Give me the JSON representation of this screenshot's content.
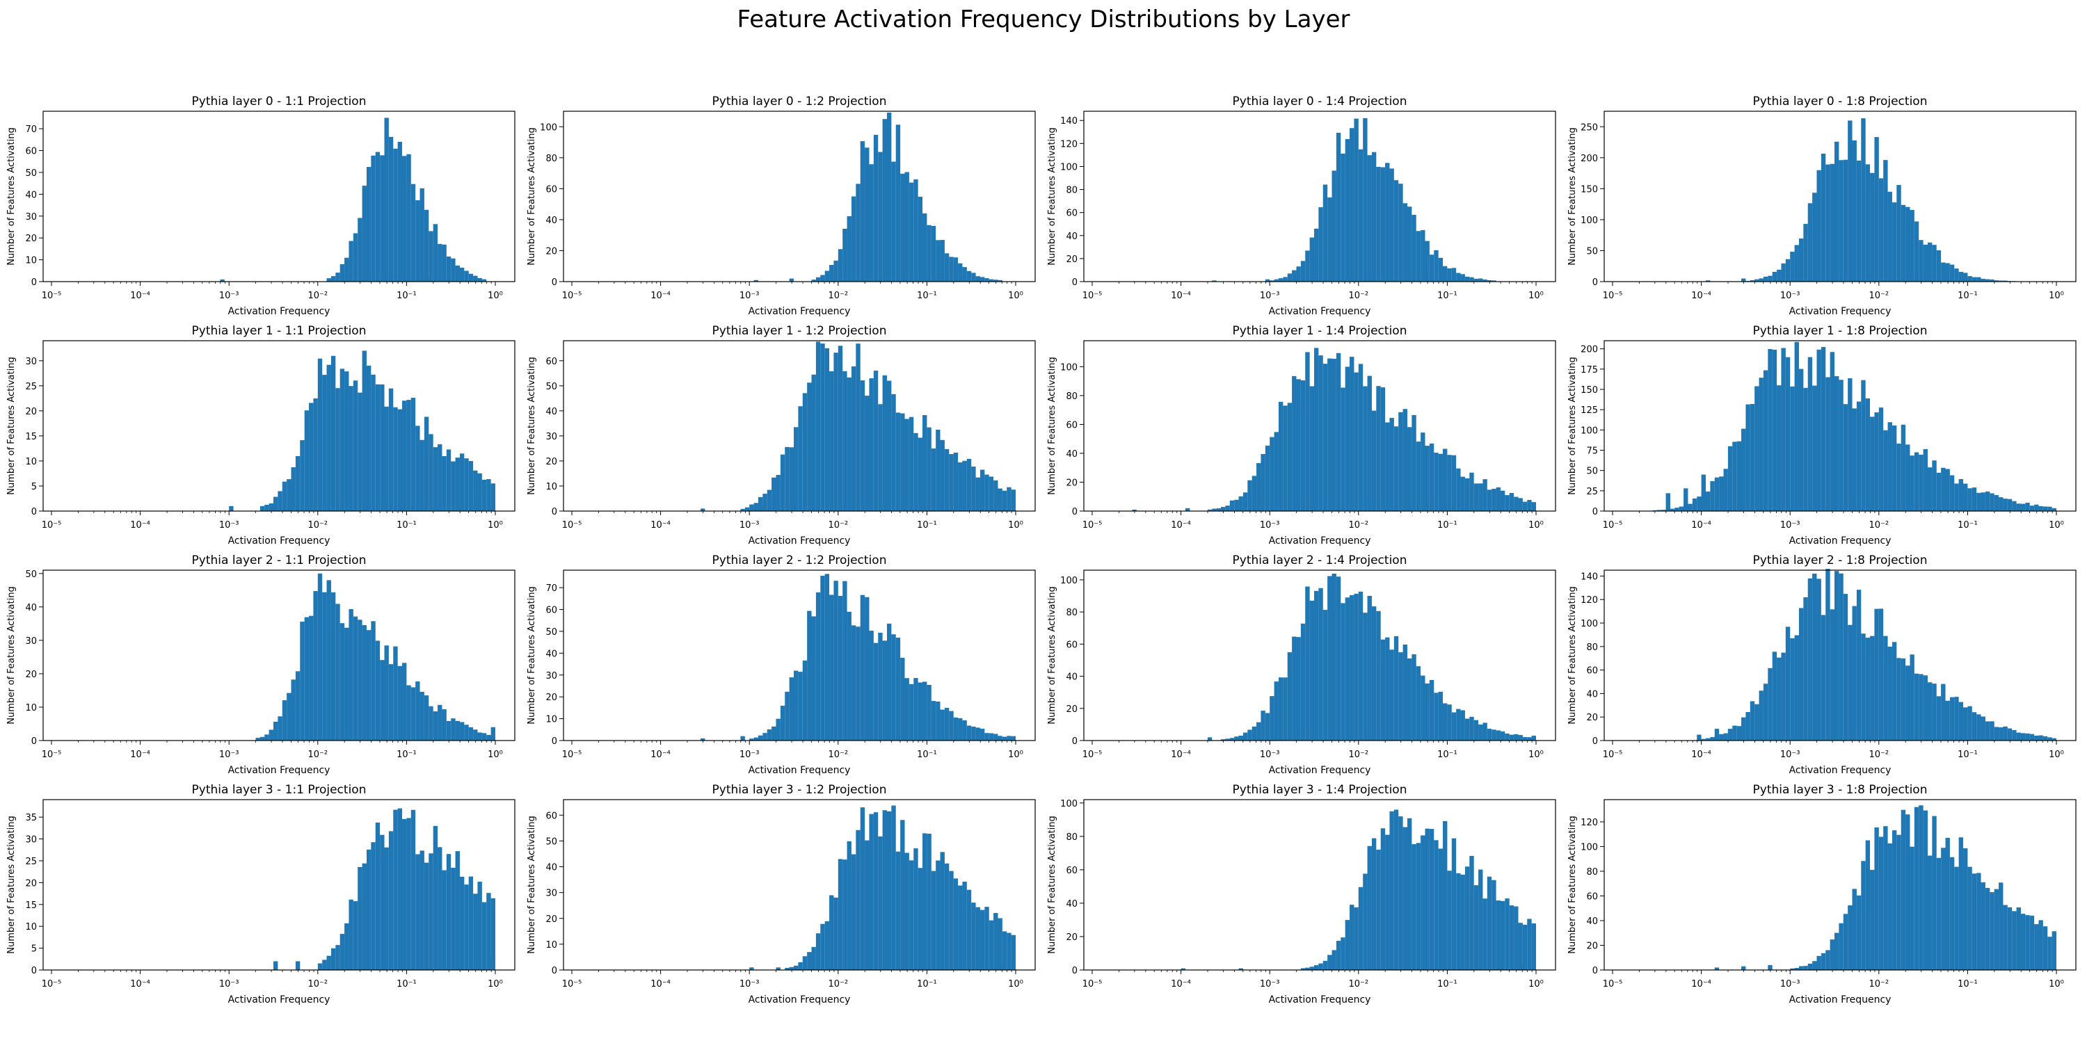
{
  "figure_title": "Feature Activation Frequency Distributions by Layer",
  "colors": {
    "bar": "#1f77b4",
    "axis": "#000000",
    "background": "#ffffff"
  },
  "shared_axes": {
    "xlabel": "Activation Frequency",
    "ylabel": "Number of Features Activating",
    "xscale": "log",
    "xlim": [
      1e-05,
      1
    ],
    "xtick_labels": [
      "10⁻⁵",
      "10⁻⁴",
      "10⁻³",
      "10⁻²",
      "10⁻¹",
      "10⁰"
    ]
  },
  "chart_data": [
    {
      "type": "bar",
      "subplot_row": 0,
      "subplot_col": 0,
      "title": "Pythia layer 0 - 1:1 Projection",
      "ylim": [
        0,
        78
      ],
      "yticks": [
        0,
        10,
        20,
        30,
        40,
        50,
        60,
        70
      ],
      "peak_x": 0.055,
      "peak_y": 75,
      "log_spread": 0.22,
      "tail_right": 0.4,
      "minor_bars": [
        [
          0.00085,
          1
        ],
        [
          0.16,
          2
        ]
      ],
      "bar_edges_log10": [
        -5,
        0
      ]
    },
    {
      "type": "bar",
      "subplot_row": 0,
      "subplot_col": 1,
      "title": "Pythia layer 0 - 1:2 Projection",
      "ylim": [
        0,
        110
      ],
      "yticks": [
        0,
        20,
        40,
        60,
        80,
        100
      ],
      "peak_x": 0.028,
      "peak_y": 105,
      "log_spread": 0.25,
      "tail_right": 0.45,
      "minor_bars": [
        [
          0.0012,
          1
        ],
        [
          0.003,
          2
        ]
      ],
      "bar_edges_log10": [
        -5,
        0
      ]
    },
    {
      "type": "bar",
      "subplot_row": 0,
      "subplot_col": 2,
      "title": "Pythia layer 0 - 1:4 Projection",
      "ylim": [
        0,
        148
      ],
      "yticks": [
        0,
        20,
        40,
        60,
        80,
        100,
        120,
        140
      ],
      "peak_x": 0.009,
      "peak_y": 142,
      "log_spread": 0.3,
      "tail_right": 0.5,
      "minor_bars": [
        [
          0.00025,
          1
        ],
        [
          0.0009,
          2
        ]
      ],
      "bar_edges_log10": [
        -5,
        0
      ]
    },
    {
      "type": "bar",
      "subplot_row": 0,
      "subplot_col": 3,
      "title": "Pythia layer 0 - 1:8 Projection",
      "ylim": [
        0,
        275
      ],
      "yticks": [
        0,
        50,
        100,
        150,
        200,
        250
      ],
      "peak_x": 0.0045,
      "peak_y": 260,
      "log_spread": 0.35,
      "tail_right": 0.55,
      "minor_bars": [
        [
          0.00012,
          2
        ],
        [
          0.0003,
          5
        ]
      ],
      "bar_edges_log10": [
        -5,
        0
      ]
    },
    {
      "type": "bar",
      "subplot_row": 1,
      "subplot_col": 0,
      "title": "Pythia layer 1 - 1:1 Projection",
      "ylim": [
        0,
        34
      ],
      "yticks": [
        0,
        5,
        10,
        15,
        20,
        25,
        30
      ],
      "peak_x": 0.014,
      "peak_y": 32,
      "log_spread": 0.28,
      "tail_right": 1.0,
      "minor_bars": [
        [
          0.0011,
          1
        ],
        [
          0.0025,
          1
        ],
        [
          0.9,
          1
        ]
      ],
      "bar_edges_log10": [
        -5,
        0
      ]
    },
    {
      "type": "bar",
      "subplot_row": 1,
      "subplot_col": 1,
      "title": "Pythia layer 1 - 1:2 Projection",
      "ylim": [
        0,
        68
      ],
      "yticks": [
        0,
        10,
        20,
        30,
        40,
        50,
        60
      ],
      "peak_x": 0.007,
      "peak_y": 65,
      "log_spread": 0.32,
      "tail_right": 1.05,
      "minor_bars": [
        [
          0.0003,
          1
        ],
        [
          0.0013,
          2
        ]
      ],
      "bar_edges_log10": [
        -5,
        0
      ]
    },
    {
      "type": "bar",
      "subplot_row": 1,
      "subplot_col": 2,
      "title": "Pythia layer 1 - 1:4 Projection",
      "ylim": [
        0,
        118
      ],
      "yticks": [
        0,
        20,
        40,
        60,
        80,
        100
      ],
      "peak_x": 0.003,
      "peak_y": 113,
      "log_spread": 0.38,
      "tail_right": 1.05,
      "minor_bars": [
        [
          3e-05,
          1
        ],
        [
          0.00012,
          2
        ]
      ],
      "bar_edges_log10": [
        -5,
        0
      ]
    },
    {
      "type": "bar",
      "subplot_row": 1,
      "subplot_col": 3,
      "title": "Pythia layer 1 - 1:8 Projection",
      "ylim": [
        0,
        210
      ],
      "yticks": [
        0,
        25,
        50,
        75,
        100,
        125,
        150,
        175,
        200
      ],
      "peak_x": 0.0009,
      "peak_y": 201,
      "log_spread": 0.45,
      "tail_right": 1.1,
      "minor_bars": [
        [
          4e-05,
          22
        ],
        [
          7e-05,
          28
        ],
        [
          0.0001,
          45
        ]
      ],
      "bar_edges_log10": [
        -5,
        0
      ]
    },
    {
      "type": "bar",
      "subplot_row": 2,
      "subplot_col": 0,
      "title": "Pythia layer 2 - 1:1 Projection",
      "ylim": [
        0,
        51
      ],
      "yticks": [
        0,
        10,
        20,
        30,
        40,
        50
      ],
      "peak_x": 0.011,
      "peak_y": 48,
      "log_spread": 0.25,
      "tail_right": 0.75,
      "minor_bars": [
        [
          0.0025,
          1
        ],
        [
          0.9,
          4
        ]
      ],
      "bar_edges_log10": [
        -5,
        0
      ]
    },
    {
      "type": "bar",
      "subplot_row": 2,
      "subplot_col": 1,
      "title": "Pythia layer 2 - 1:2 Projection",
      "ylim": [
        0,
        78
      ],
      "yticks": [
        0,
        10,
        20,
        30,
        40,
        50,
        60,
        70
      ],
      "peak_x": 0.008,
      "peak_y": 73,
      "log_spread": 0.3,
      "tail_right": 0.75,
      "minor_bars": [
        [
          0.0003,
          1
        ],
        [
          0.0008,
          2
        ],
        [
          0.9,
          2
        ]
      ],
      "bar_edges_log10": [
        -5,
        0
      ]
    },
    {
      "type": "bar",
      "subplot_row": 2,
      "subplot_col": 2,
      "title": "Pythia layer 2 - 1:4 Projection",
      "ylim": [
        0,
        106
      ],
      "yticks": [
        0,
        20,
        40,
        60,
        80,
        100
      ],
      "peak_x": 0.004,
      "peak_y": 102,
      "log_spread": 0.36,
      "tail_right": 0.85,
      "minor_bars": [
        [
          0.0002,
          2
        ],
        [
          0.0005,
          3
        ],
        [
          0.9,
          3
        ]
      ],
      "bar_edges_log10": [
        -5,
        0
      ]
    },
    {
      "type": "bar",
      "subplot_row": 2,
      "subplot_col": 3,
      "title": "Pythia layer 2 - 1:8 Projection",
      "ylim": [
        0,
        145
      ],
      "yticks": [
        0,
        20,
        40,
        60,
        80,
        100,
        120,
        140
      ],
      "peak_x": 0.002,
      "peak_y": 138,
      "log_spread": 0.42,
      "tail_right": 0.95,
      "minor_bars": [
        [
          9e-05,
          5
        ],
        [
          0.00015,
          10
        ],
        [
          0.0002,
          10
        ]
      ],
      "bar_edges_log10": [
        -5,
        0
      ]
    },
    {
      "type": "bar",
      "subplot_row": 3,
      "subplot_col": 0,
      "title": "Pythia layer 3 - 1:1 Projection",
      "ylim": [
        0,
        39
      ],
      "yticks": [
        0,
        5,
        10,
        15,
        20,
        25,
        30,
        35
      ],
      "peak_x": 0.055,
      "peak_y": 37,
      "log_spread": 0.28,
      "tail_right": 0.95,
      "minor_bars": [
        [
          0.0035,
          2
        ],
        [
          0.006,
          2
        ],
        [
          0.9,
          3
        ]
      ],
      "bar_edges_log10": [
        -5,
        0
      ]
    },
    {
      "type": "bar",
      "subplot_row": 3,
      "subplot_col": 1,
      "title": "Pythia layer 3 - 1:2 Projection",
      "ylim": [
        0,
        66
      ],
      "yticks": [
        0,
        10,
        20,
        30,
        40,
        50,
        60
      ],
      "peak_x": 0.02,
      "peak_y": 63,
      "log_spread": 0.3,
      "tail_right": 1.0,
      "minor_bars": [
        [
          0.001,
          1
        ],
        [
          0.002,
          1
        ],
        [
          0.7,
          2
        ]
      ],
      "bar_edges_log10": [
        -5,
        0
      ]
    },
    {
      "type": "bar",
      "subplot_row": 3,
      "subplot_col": 2,
      "title": "Pythia layer 3 - 1:4 Projection",
      "ylim": [
        0,
        102
      ],
      "yticks": [
        0,
        20,
        40,
        60,
        80,
        100
      ],
      "peak_x": 0.025,
      "peak_y": 96,
      "log_spread": 0.34,
      "tail_right": 1.0,
      "minor_bars": [
        [
          0.0001,
          1
        ],
        [
          0.0005,
          1
        ],
        [
          0.7,
          3
        ]
      ],
      "bar_edges_log10": [
        -5,
        0
      ]
    },
    {
      "type": "bar",
      "subplot_row": 3,
      "subplot_col": 3,
      "title": "Pythia layer 3 - 1:8 Projection",
      "ylim": [
        0,
        138
      ],
      "yticks": [
        0,
        20,
        40,
        60,
        80,
        100,
        120
      ],
      "peak_x": 0.015,
      "peak_y": 132,
      "log_spread": 0.38,
      "tail_right": 1.05,
      "minor_bars": [
        [
          0.00015,
          2
        ],
        [
          0.0003,
          3
        ],
        [
          0.0006,
          4
        ]
      ],
      "bar_edges_log10": [
        -5,
        0
      ]
    }
  ]
}
